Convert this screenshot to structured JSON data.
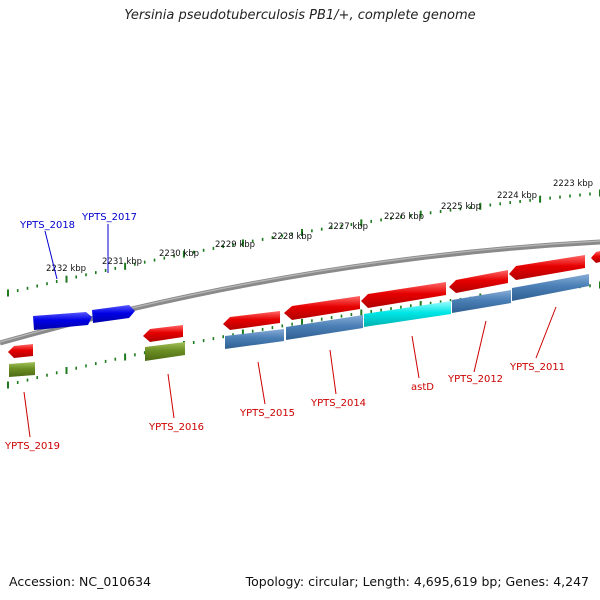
{
  "title": "Yersinia pseudotuberculosis PB1/+, complete genome",
  "footer": {
    "accession": "Accession: NC_010634",
    "topology": "Topology: circular; Length: 4,695,619 bp; Genes: 4,247"
  },
  "colors": {
    "backbone": "#7a7a7a",
    "tick": "#1e7a1e",
    "gene_forward_red": "#e60000",
    "gene_blue": "#0000e6",
    "gene_steelblue": "#4a7fb5",
    "gene_cyan": "#00e6e6",
    "gene_olive": "#6b8e23",
    "label_red": "#cc0000",
    "label_blue": "#0000cc"
  },
  "scale": {
    "unit": "kbp",
    "labels": [
      "2223 kbp",
      "2224 kbp",
      "2225 kbp",
      "2226 kbp",
      "2227 kbp",
      "2228 kbp",
      "2229 kbp",
      "2230 kbp",
      "2231 kbp",
      "2232 kbp"
    ]
  },
  "gene_labels": [
    {
      "text": "YPTS_2018",
      "color": "blue"
    },
    {
      "text": "YPTS_2017",
      "color": "blue"
    },
    {
      "text": "YPTS_2016",
      "color": "red"
    },
    {
      "text": "YPTS_2015",
      "color": "red"
    },
    {
      "text": "YPTS_2014",
      "color": "red"
    },
    {
      "text": "astD",
      "color": "red"
    },
    {
      "text": "YPTS_2012",
      "color": "red"
    },
    {
      "text": "YPTS_2011",
      "color": "red"
    },
    {
      "text": "YPTS_2019",
      "color": "red"
    }
  ]
}
